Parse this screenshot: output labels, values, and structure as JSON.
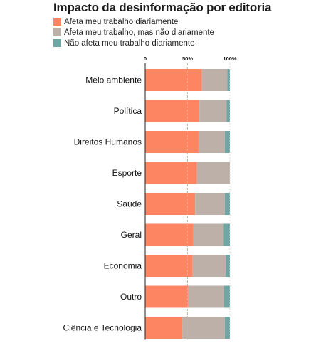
{
  "chart_data": {
    "type": "bar",
    "orientation": "horizontal",
    "stacked": true,
    "title": "Impacto da desinformação por editoria",
    "categories": [
      "Meio ambiente",
      "Política",
      "Direitos Humanos",
      "Esporte",
      "Saúde",
      "Geral",
      "Economia",
      "Outro",
      "Ciência e Tecnologia"
    ],
    "series": [
      {
        "name": "Afeta meu trabalho diariamente",
        "color": "#fe8562",
        "values": [
          67,
          64,
          63,
          61,
          59,
          57,
          56,
          51,
          44
        ]
      },
      {
        "name": "Afeta meu trabalho, mas não diariamente",
        "color": "#bcb0a8",
        "values": [
          30,
          32,
          31,
          39,
          35,
          35,
          39,
          42,
          50
        ]
      },
      {
        "name": "Não afeta meu trabalho diariamente",
        "color": "#6fa6a3",
        "values": [
          3,
          4,
          6,
          0,
          6,
          8,
          5,
          7,
          6
        ]
      }
    ],
    "xticks": [
      "0",
      "50%",
      "100%"
    ],
    "xlim": [
      0,
      100
    ],
    "grid": "vertical dashed at 50%",
    "legend_position": "top-left"
  }
}
